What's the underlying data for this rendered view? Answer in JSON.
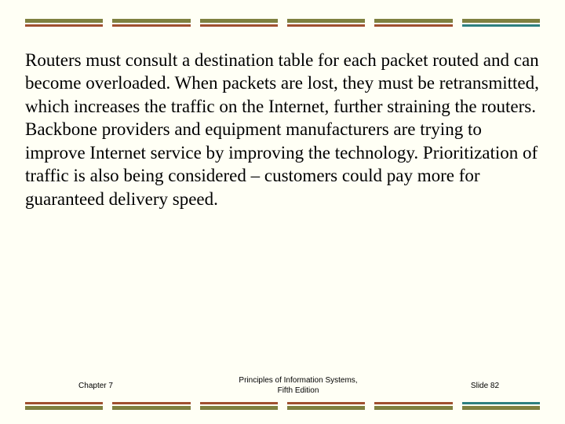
{
  "decor": {
    "colors": {
      "olive": "#7f8040",
      "rust": "#a05030",
      "teal": "#2e8080"
    },
    "top_bars": [
      {
        "top": "olive",
        "bot": "rust"
      },
      {
        "top": "olive",
        "bot": "rust"
      },
      {
        "top": "olive",
        "bot": "rust"
      },
      {
        "top": "olive",
        "bot": "rust"
      },
      {
        "top": "olive",
        "bot": "rust"
      },
      {
        "top": "olive",
        "bot": "teal"
      }
    ],
    "bottom_bars": [
      {
        "top": "rust",
        "bot": "olive"
      },
      {
        "top": "rust",
        "bot": "olive"
      },
      {
        "top": "rust",
        "bot": "olive"
      },
      {
        "top": "rust",
        "bot": "olive"
      },
      {
        "top": "rust",
        "bot": "olive"
      },
      {
        "top": "teal",
        "bot": "olive"
      }
    ]
  },
  "body_text": "Routers must consult a destination table for each packet routed and can become overloaded.  When packets are lost, they must be retransmitted, which increases the traffic on the Internet, further straining the routers. Backbone providers and equipment manufacturers are trying to improve Internet service by improving the technology. Prioritization of traffic is also being considered – customers could pay more for guaranteed delivery speed.",
  "footer": {
    "left": "Chapter 7",
    "center_line1": "Principles of Information Systems,",
    "center_line2": "Fifth Edition",
    "right": "Slide 82"
  }
}
